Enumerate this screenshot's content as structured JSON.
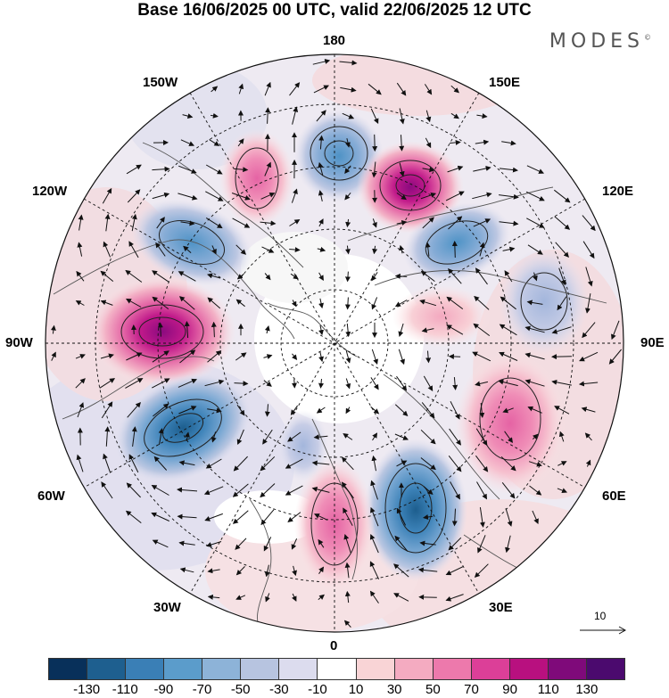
{
  "title": "Base 16/06/2025 00 UTC, valid 22/06/2025 12 UTC",
  "brand": "MODES",
  "brand_mark": "©",
  "map_labels": {
    "top": "180",
    "top_left": "150W",
    "top_right": "150E",
    "upper_left": "120W",
    "upper_right": "120E",
    "left": "90W",
    "right": "90E",
    "lower_left": "60W",
    "lower_right": "60E",
    "bottom_left": "30W",
    "bottom_right": "30E",
    "bottom": "0"
  },
  "reference_vector": {
    "label": "10"
  },
  "colorbar": {
    "ticks": [
      "-130",
      "-110",
      "-90",
      "-70",
      "-50",
      "-30",
      "-10",
      "10",
      "30",
      "50",
      "70",
      "90",
      "110",
      "130"
    ],
    "colors": [
      "#08305a",
      "#1e5f8f",
      "#3a7fb6",
      "#5b9ccb",
      "#8db3d8",
      "#b7c4e0",
      "#dcdcee",
      "#ffffff",
      "#f9d4d6",
      "#f4abc1",
      "#ed79ac",
      "#dc3f98",
      "#b8107f",
      "#7f0a7a",
      "#4b0a6e"
    ]
  },
  "anomalies": [
    {
      "id": "pos-90w",
      "value": 110
    },
    {
      "id": "neg-60w",
      "value": -90
    },
    {
      "id": "neg-120w",
      "value": -70
    },
    {
      "id": "pos-150w",
      "value": 70
    },
    {
      "id": "neg-180",
      "value": -70
    },
    {
      "id": "pos-150e",
      "value": 110
    },
    {
      "id": "neg-120e",
      "value": -70
    },
    {
      "id": "neg-100e",
      "value": -50
    },
    {
      "id": "pos-90e",
      "value": 30
    },
    {
      "id": "pos-70e",
      "value": 70
    },
    {
      "id": "neg-40e",
      "value": -110
    },
    {
      "id": "pos-15e",
      "value": 90
    },
    {
      "id": "neg-40w",
      "value": -30
    }
  ]
}
